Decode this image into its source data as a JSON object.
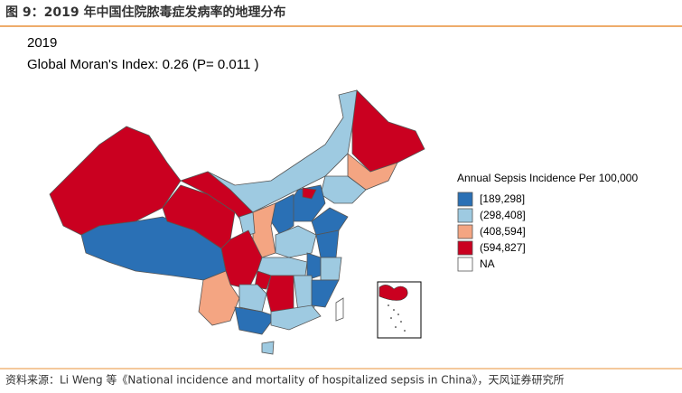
{
  "header": {
    "title": "图 9：2019 年中国住院脓毒症发病率的地理分布"
  },
  "map": {
    "year": "2019",
    "statistic": "Global Moran's Index: 0.26  (P= 0.011 )",
    "legend": {
      "title": "Annual Sepsis Incidence Per 100,000",
      "items": [
        {
          "label": "[189,298]",
          "color": "#2a70b5"
        },
        {
          "label": "(298,408]",
          "color": "#9ecae1"
        },
        {
          "label": "(408,594]",
          "color": "#f4a582"
        },
        {
          "label": "(594,827]",
          "color": "#ca0020"
        },
        {
          "label": "NA",
          "color": "#ffffff"
        }
      ]
    }
  },
  "footer": {
    "source": "资料来源：Li Weng 等《National incidence and mortality of hospitalized sepsis in China》，天风证券研究所"
  }
}
